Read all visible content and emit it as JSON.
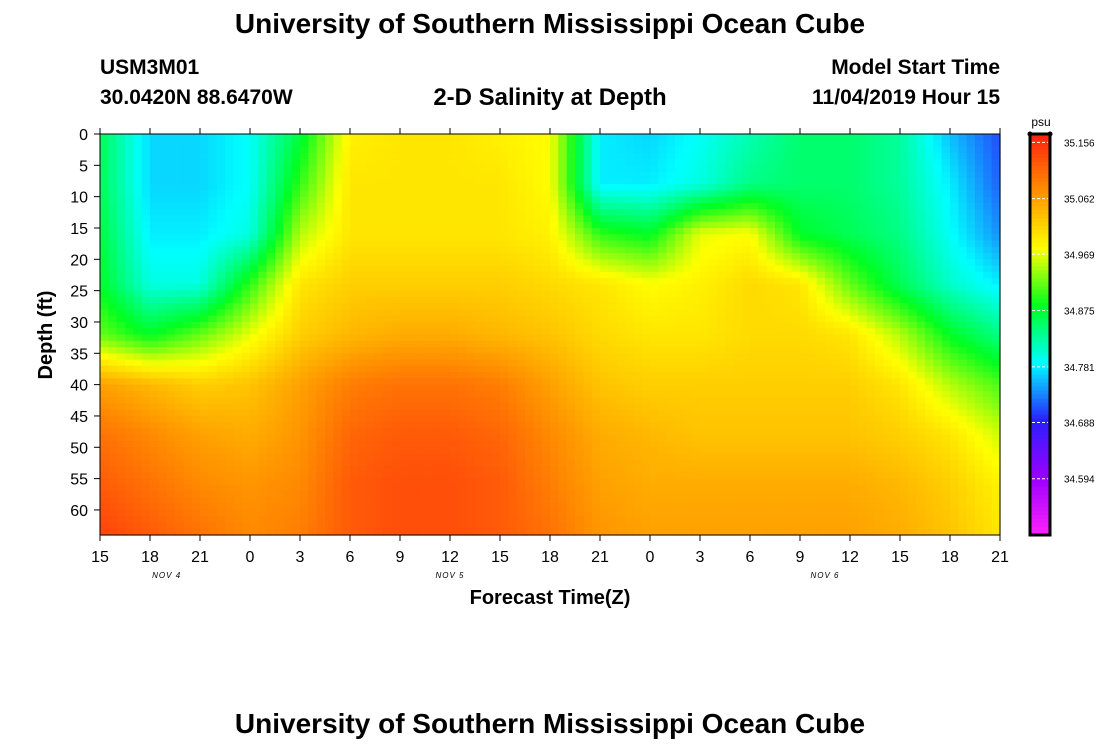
{
  "header": {
    "title": "University of Southern Mississippi Ocean Cube",
    "station_id": "USM3M01",
    "location": "30.0420N 88.6470W",
    "chart_title": "2-D Salinity at Depth",
    "model_start_label": "Model Start Time",
    "model_start_value": "11/04/2019 Hour 15"
  },
  "footer": {
    "title": "University of Southern Mississippi Ocean Cube"
  },
  "colors": {
    "scale": [
      "#ff22ff",
      "#9b00ff",
      "#2a20ff",
      "#00ffff",
      "#00ff20",
      "#ffff00",
      "#ff9000",
      "#ff2010"
    ]
  },
  "chart_data": {
    "type": "heatmap",
    "title": "2-D Salinity at Depth",
    "xlabel": "Forecast Time(Z)",
    "ylabel": "Depth (ft)",
    "x_ticks": [
      "15",
      "18",
      "21",
      "0",
      "3",
      "6",
      "9",
      "12",
      "15",
      "18",
      "21",
      "0",
      "3",
      "6",
      "9",
      "12",
      "15",
      "18",
      "21"
    ],
    "x_hours": [
      0,
      3,
      6,
      9,
      12,
      15,
      18,
      21,
      24,
      27,
      30,
      33,
      36,
      39,
      42,
      45,
      48,
      51,
      54
    ],
    "date_labels": [
      {
        "text": "NOV 4",
        "hour": 4
      },
      {
        "text": "NOV 5",
        "hour": 21
      },
      {
        "text": "NOV 6",
        "hour": 43.5
      }
    ],
    "y_ticks": [
      0,
      5,
      10,
      15,
      20,
      25,
      30,
      35,
      40,
      45,
      50,
      55,
      60
    ],
    "ylim": [
      0,
      64
    ],
    "colorbar": {
      "unit": "psu",
      "ticks": [
        "35.156",
        "35.062",
        "34.969",
        "34.875",
        "34.781",
        "34.688",
        "34.594"
      ],
      "tick_values": [
        35.156,
        35.062,
        34.969,
        34.875,
        34.781,
        34.688,
        34.594
      ],
      "min": 34.5,
      "max": 35.17
    },
    "field": {
      "depths": [
        0,
        8,
        16,
        24,
        32,
        40,
        48,
        56,
        64
      ],
      "hours": [
        0,
        3,
        6,
        9,
        12,
        15,
        18,
        21,
        24,
        27,
        30,
        33,
        36,
        39,
        42,
        45,
        48,
        51,
        54
      ],
      "values": [
        [
          34.86,
          34.77,
          34.77,
          34.79,
          34.87,
          34.99,
          35.0,
          35.0,
          34.99,
          34.98,
          34.78,
          34.77,
          34.79,
          34.82,
          34.85,
          34.85,
          34.83,
          34.76,
          34.71
        ],
        [
          34.86,
          34.77,
          34.77,
          34.79,
          34.9,
          35.0,
          35.0,
          35.0,
          35.0,
          34.98,
          34.78,
          34.78,
          34.8,
          34.84,
          34.85,
          34.85,
          34.83,
          34.78,
          34.72
        ],
        [
          34.87,
          34.78,
          34.78,
          34.8,
          34.95,
          35.0,
          35.0,
          35.0,
          35.0,
          34.99,
          34.9,
          34.88,
          34.97,
          34.98,
          34.88,
          34.86,
          34.84,
          34.79,
          34.74
        ],
        [
          34.88,
          34.8,
          34.8,
          34.9,
          35.0,
          35.02,
          35.02,
          35.02,
          35.02,
          35.01,
          35.0,
          34.98,
          34.99,
          35.01,
          35.0,
          34.92,
          34.86,
          34.81,
          34.78
        ],
        [
          34.92,
          34.88,
          34.92,
          34.97,
          35.02,
          35.04,
          35.05,
          35.05,
          35.04,
          35.03,
          35.01,
          35.0,
          35.0,
          35.01,
          35.01,
          35.0,
          34.95,
          34.88,
          34.84
        ],
        [
          35.06,
          35.04,
          35.02,
          35.03,
          35.06,
          35.09,
          35.1,
          35.1,
          35.09,
          35.06,
          35.03,
          35.02,
          35.02,
          35.02,
          35.02,
          35.02,
          35.0,
          34.95,
          34.91
        ],
        [
          35.1,
          35.08,
          35.06,
          35.05,
          35.07,
          35.11,
          35.12,
          35.12,
          35.11,
          35.08,
          35.05,
          35.04,
          35.03,
          35.03,
          35.03,
          35.03,
          35.02,
          35.0,
          34.96
        ],
        [
          35.12,
          35.1,
          35.08,
          35.07,
          35.08,
          35.12,
          35.13,
          35.13,
          35.12,
          35.09,
          35.06,
          35.05,
          35.05,
          35.05,
          35.05,
          35.05,
          35.04,
          35.02,
          34.99
        ],
        [
          35.14,
          35.12,
          35.1,
          35.08,
          35.09,
          35.12,
          35.13,
          35.13,
          35.12,
          35.1,
          35.07,
          35.06,
          35.06,
          35.06,
          35.06,
          35.06,
          35.05,
          35.03,
          35.0
        ]
      ]
    }
  }
}
